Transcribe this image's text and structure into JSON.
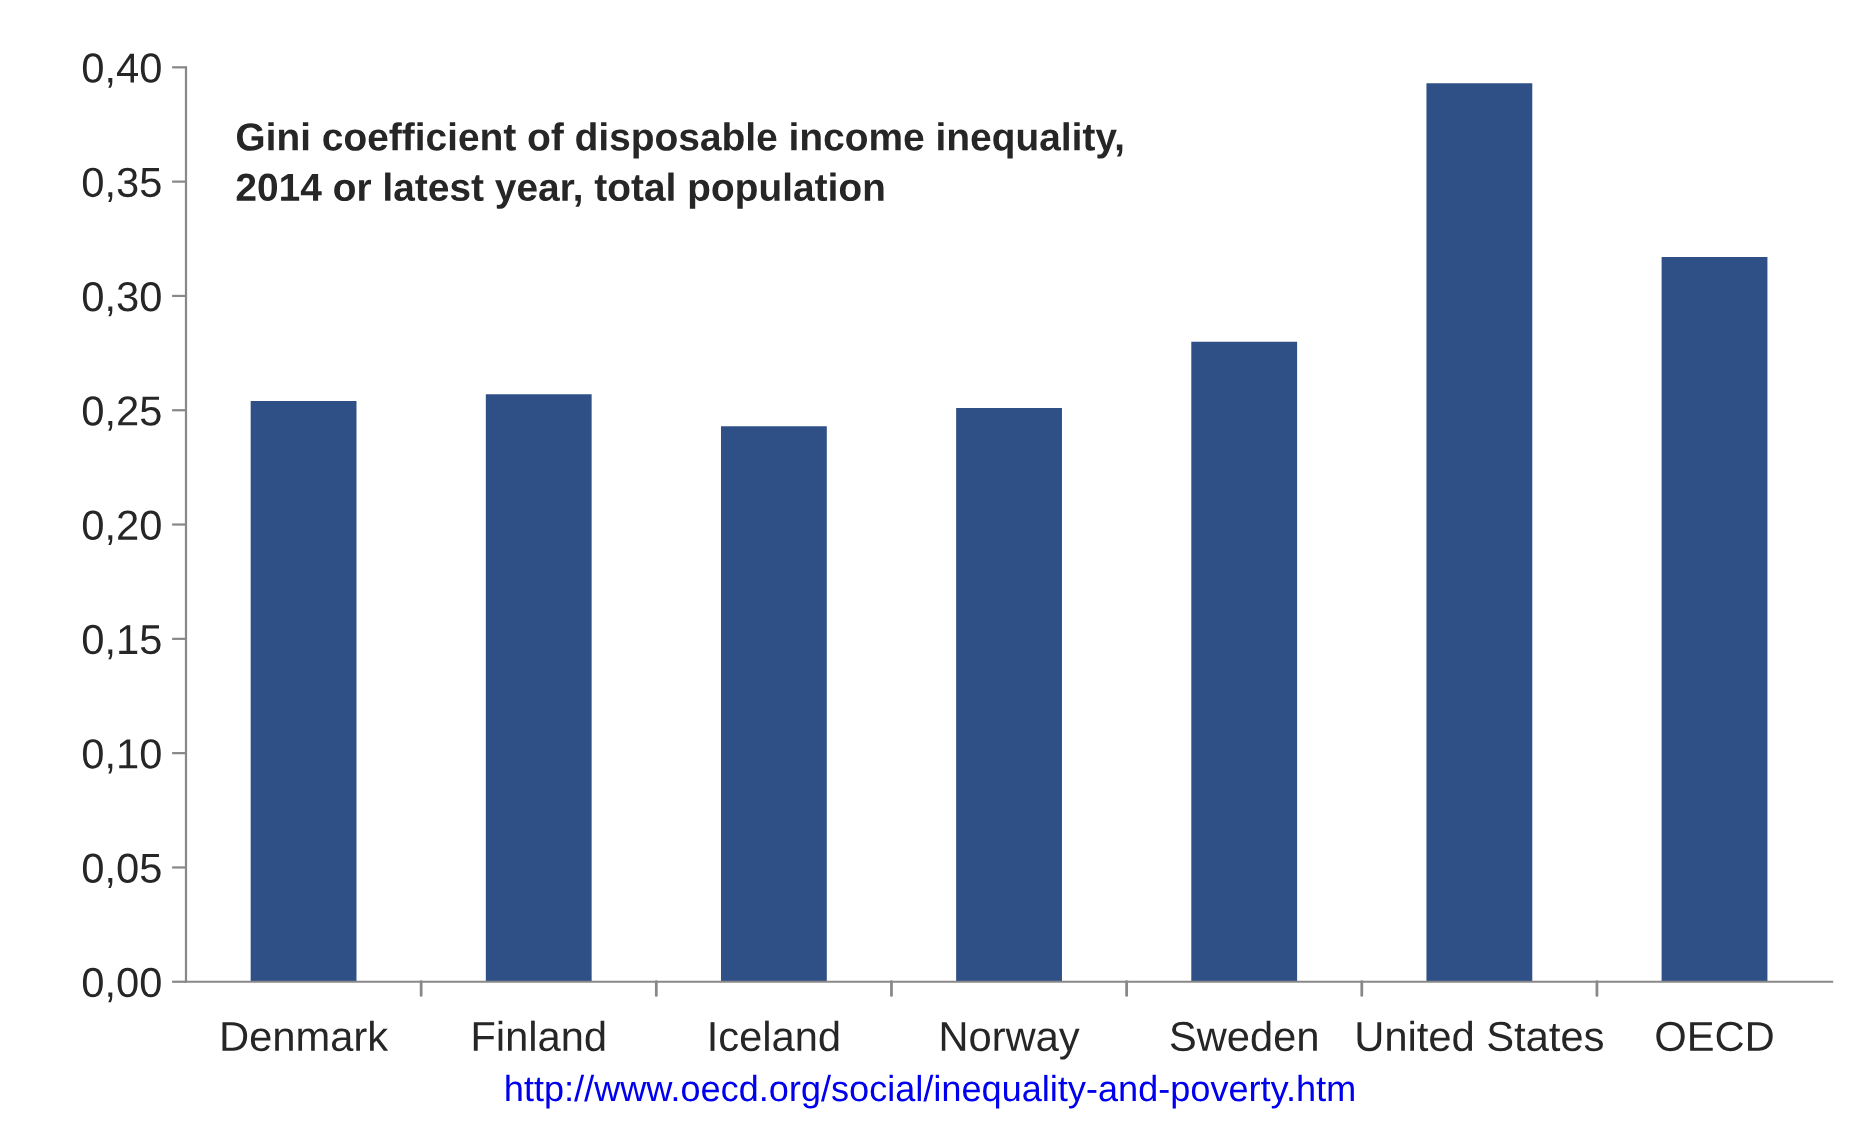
{
  "chart_data": {
    "type": "bar",
    "title": "Gini coefficient of disposable income inequality,\n2014 or latest year, total population",
    "categories": [
      "Denmark",
      "Finland",
      "Iceland",
      "Norway",
      "Sweden",
      "United States",
      "OECD"
    ],
    "values": [
      0.254,
      0.257,
      0.243,
      0.251,
      0.28,
      0.393,
      0.317
    ],
    "color": "#2f4f87",
    "ylim": [
      0,
      0.4
    ],
    "yticks": [
      {
        "value": 0,
        "label": "0,00"
      },
      {
        "value": 0.05,
        "label": "0,05"
      },
      {
        "value": 0.1,
        "label": "0,10"
      },
      {
        "value": 0.15,
        "label": "0,15"
      },
      {
        "value": 0.2,
        "label": "0,20"
      },
      {
        "value": 0.25,
        "label": "0,25"
      },
      {
        "value": 0.3,
        "label": "0,30"
      },
      {
        "value": 0.35,
        "label": "0,35"
      },
      {
        "value": 0.4,
        "label": "0,40"
      }
    ],
    "grid": false,
    "legend": false,
    "annotations": [
      "http://www.oecd.org/social/inequality-and-poverty.htm"
    ]
  }
}
